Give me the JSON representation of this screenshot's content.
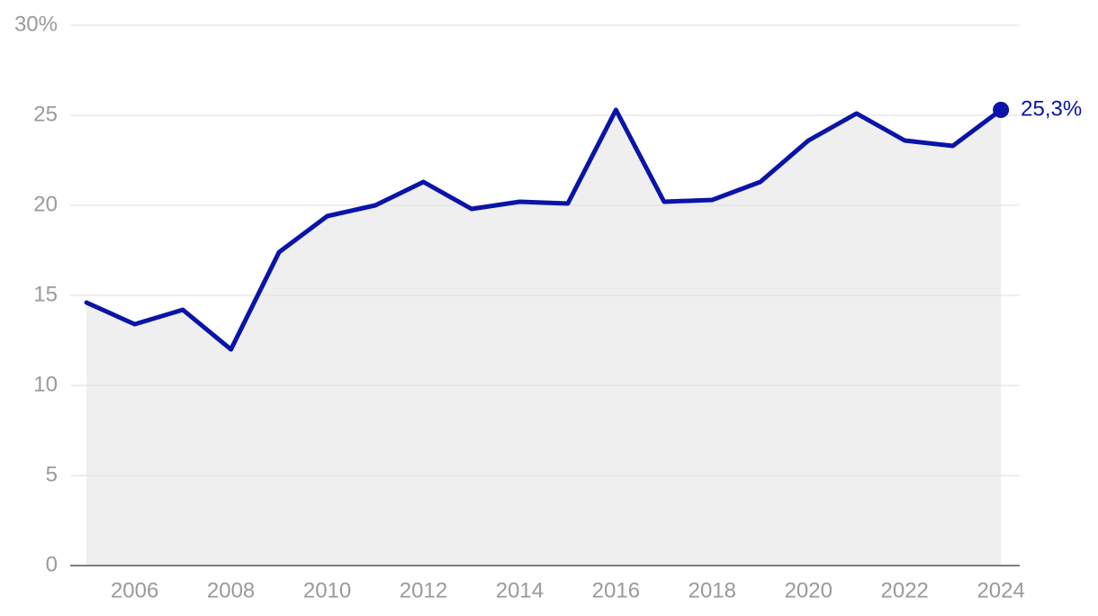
{
  "chart_data": {
    "type": "line",
    "x": [
      2005,
      2006,
      2007,
      2008,
      2009,
      2010,
      2011,
      2012,
      2013,
      2014,
      2015,
      2016,
      2017,
      2018,
      2019,
      2020,
      2021,
      2022,
      2023,
      2024
    ],
    "series": [
      {
        "color": "#0a14a8",
        "area_color": "#efefef",
        "values": [
          14.6,
          13.4,
          14.2,
          12.0,
          17.4,
          19.4,
          20.0,
          21.3,
          19.8,
          20.2,
          20.1,
          25.3,
          20.2,
          20.3,
          21.3,
          23.6,
          25.1,
          23.6,
          23.3,
          25.3
        ],
        "value_labels": [
          null,
          null,
          null,
          null,
          null,
          null,
          null,
          null,
          null,
          null,
          null,
          null,
          null,
          null,
          null,
          null,
          null,
          null,
          null,
          "25,3%"
        ]
      }
    ],
    "xlim": [
      2004.66,
      2024.39
    ],
    "xticks": [
      2006,
      2008,
      2010,
      2012,
      2014,
      2016,
      2018,
      2020,
      2022,
      2024
    ],
    "ylim": [
      0,
      30
    ],
    "yticks": [
      0,
      5,
      10,
      15,
      20,
      25,
      {
        "value": 30,
        "label": "30%"
      }
    ],
    "grid": true,
    "area": true
  }
}
